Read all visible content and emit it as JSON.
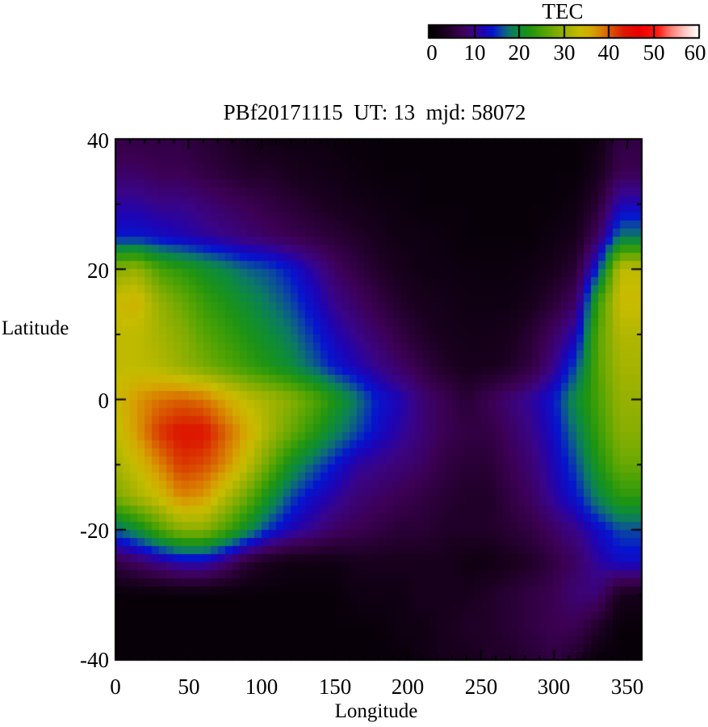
{
  "chart_data": {
    "type": "heatmap",
    "title": "PBf20171115  UT: 13  mjd: 58072",
    "xlabel": "Longitude",
    "ylabel": "Latitude",
    "xlim": [
      0,
      360
    ],
    "ylim": [
      -40,
      40
    ],
    "x_tick_values": [
      0,
      50,
      100,
      150,
      200,
      250,
      300,
      350
    ],
    "x_tick_labels": [
      "0",
      "50",
      "100",
      "150",
      "200",
      "250",
      "300",
      "350"
    ],
    "y_tick_values": [
      40,
      20,
      0,
      -20,
      -40
    ],
    "y_tick_labels": [
      "40",
      "20",
      "0",
      "-20",
      "-40"
    ],
    "minor_tick_step_lon": 10,
    "minor_tick_step_lat": 10,
    "colorbar": {
      "label": "TEC",
      "min": 0,
      "max": 60,
      "tick_values": [
        0,
        10,
        20,
        30,
        40,
        50,
        60
      ],
      "tick_labels": [
        "0",
        "10",
        "20",
        "30",
        "40",
        "50",
        "60"
      ]
    },
    "colormap_stops": [
      [
        0.0,
        "#000000"
      ],
      [
        0.06,
        "#1c0022"
      ],
      [
        0.12,
        "#3c0054"
      ],
      [
        0.165,
        "#3a0486"
      ],
      [
        0.2,
        "#1e04b4"
      ],
      [
        0.235,
        "#0514cf"
      ],
      [
        0.27,
        "#0b4e9b"
      ],
      [
        0.3,
        "#0c7868"
      ],
      [
        0.33,
        "#0d8c3a"
      ],
      [
        0.37,
        "#1e9413"
      ],
      [
        0.42,
        "#4ba204"
      ],
      [
        0.47,
        "#7cac02"
      ],
      [
        0.52,
        "#a8b400"
      ],
      [
        0.56,
        "#c6bc00"
      ],
      [
        0.6,
        "#d4a800"
      ],
      [
        0.64,
        "#d97e00"
      ],
      [
        0.68,
        "#d94e00"
      ],
      [
        0.72,
        "#dc1c00"
      ],
      [
        0.78,
        "#ec0000"
      ],
      [
        0.85,
        "#ff1a10"
      ],
      [
        0.9,
        "#ff7f76"
      ],
      [
        0.95,
        "#ffc4c0"
      ],
      [
        1.0,
        "#ffffff"
      ]
    ],
    "grid": {
      "lons": [
        0,
        15,
        30,
        45,
        60,
        75,
        90,
        105,
        120,
        135,
        150,
        165,
        180,
        195,
        210,
        225,
        240,
        255,
        270,
        285,
        300,
        315,
        330,
        345
      ],
      "lats": [
        40,
        35,
        30,
        25,
        20,
        15,
        10,
        5,
        0,
        -5,
        -10,
        -15,
        -20,
        -25,
        -30,
        -35,
        -40
      ],
      "tec_values": [
        [
          6,
          6,
          6,
          6,
          5,
          4,
          3,
          2,
          2,
          2,
          1.5,
          1,
          1,
          1,
          1,
          1,
          1,
          1,
          1,
          1,
          1,
          1,
          2,
          6
        ],
        [
          8,
          8,
          7,
          7,
          6,
          5,
          4,
          4,
          3,
          2.5,
          2,
          1.5,
          1,
          1,
          1,
          1,
          1,
          1,
          1,
          1,
          1,
          1,
          3,
          7
        ],
        [
          11,
          11,
          10,
          10,
          9,
          8,
          7,
          6,
          5,
          4,
          3,
          2.5,
          2,
          1.5,
          1,
          1,
          1,
          1,
          1,
          1,
          1,
          2,
          5,
          12
        ],
        [
          14,
          14,
          13,
          12,
          11,
          10,
          9,
          8,
          7,
          6,
          5,
          4,
          3,
          2,
          2,
          1.5,
          1,
          1,
          1,
          1,
          2,
          3,
          8,
          18
        ],
        [
          29,
          30,
          25,
          23,
          21,
          19,
          17,
          16,
          14,
          11,
          8,
          6,
          4,
          3,
          2,
          2,
          1.5,
          1.5,
          1.5,
          2,
          3,
          5,
          15,
          33
        ],
        [
          34,
          35,
          30,
          27,
          24,
          22,
          20,
          18,
          16,
          13,
          10,
          8,
          6,
          4,
          3,
          2.5,
          2,
          2,
          2,
          3,
          5,
          8,
          24,
          34
        ],
        [
          33,
          33,
          31,
          29,
          26,
          24,
          22,
          20,
          18,
          15,
          12,
          10,
          8,
          6,
          4,
          3,
          2.5,
          2.5,
          3,
          5,
          8,
          12,
          26,
          32
        ],
        [
          33,
          33,
          32,
          30,
          28,
          26,
          24,
          22,
          20,
          17,
          14,
          12,
          10,
          8,
          6,
          4,
          3,
          3,
          4,
          6,
          10,
          16,
          26,
          31
        ],
        [
          34,
          37,
          39,
          40,
          39,
          36,
          33,
          31,
          29,
          26,
          22,
          18,
          14,
          12,
          9,
          7,
          5,
          7,
          9,
          11,
          14,
          20,
          25,
          30
        ],
        [
          33,
          37,
          42,
          44,
          44,
          40,
          36,
          31,
          27,
          23,
          19,
          16,
          13,
          11,
          9,
          7,
          6,
          6,
          8,
          10,
          13,
          18,
          24,
          29
        ],
        [
          31,
          34,
          38,
          42,
          41,
          38,
          33,
          27,
          21,
          17,
          14,
          11,
          10,
          9,
          8,
          6,
          5,
          5,
          7,
          9,
          12,
          16,
          22,
          27
        ],
        [
          28,
          31,
          34,
          38,
          37,
          32,
          27,
          21,
          16,
          13,
          11,
          9,
          8,
          7,
          6,
          5,
          4,
          4,
          6,
          8,
          11,
          14,
          19,
          23
        ],
        [
          17,
          20,
          25,
          29,
          29,
          25,
          20,
          15,
          12,
          10,
          8,
          7,
          6,
          5,
          5,
          4,
          4,
          4,
          5,
          6,
          8,
          10,
          13,
          16
        ],
        [
          6,
          8,
          10,
          12,
          12,
          9,
          5,
          3,
          2,
          2,
          2,
          3,
          3,
          3,
          3,
          3,
          2,
          2,
          3,
          4,
          6,
          8,
          11,
          13
        ],
        [
          1,
          1,
          1,
          1,
          1,
          1,
          1,
          1,
          1,
          1,
          1,
          2,
          2,
          2,
          3,
          3,
          3,
          4,
          5,
          6,
          7,
          9,
          9,
          3
        ],
        [
          1,
          1,
          1,
          1,
          1,
          1,
          1,
          1,
          1,
          1,
          1,
          1,
          1,
          2,
          2,
          3,
          4,
          4,
          5,
          6,
          7,
          7,
          4,
          1
        ],
        [
          1,
          1,
          1,
          1,
          1,
          1,
          1,
          1,
          1,
          1,
          1,
          1,
          1,
          1,
          2,
          3,
          3,
          4,
          4,
          5,
          6,
          4,
          1,
          1
        ]
      ]
    }
  }
}
